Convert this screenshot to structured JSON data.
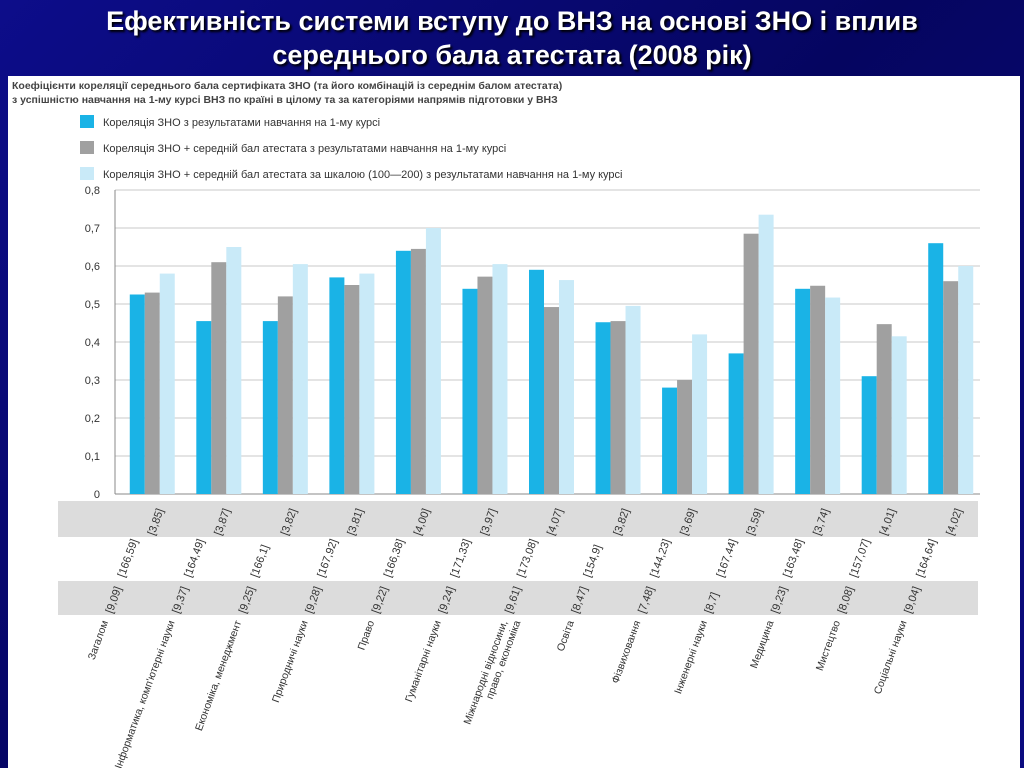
{
  "slide": {
    "title_line1": "Ефективність системи вступу до ВНЗ на основі ЗНО і вплив",
    "title_line2": "середнього бала атестата (2008 рік)"
  },
  "colors": {
    "background": "#0a0a78",
    "series_1": "#1ab3e6",
    "series_2": "#a0a0a0",
    "series_3": "#c9eaf8",
    "grid": "#c8c8c8",
    "table_band": "#dcdcdc"
  },
  "chart_data": {
    "type": "bar",
    "title": "Коефіцієнти кореляції середнього бала сертифіката ЗНО (та його комбінацій із середнім балом атестата) з успішністю навчання на 1-му курсі ВНЗ по країні в цілому та за категоріями напрямів підготовки у ВНЗ",
    "title_line1": "Коефіцієнти кореляції середнього бала сертифіката ЗНО (та його комбінацій із середнім балом атестата)",
    "title_line2": "з успішністю навчання на 1-му курсі ВНЗ по країні в цілому та за категоріями напрямів підготовки у ВНЗ",
    "legend_position": "top-left",
    "grid": true,
    "ylim": [
      0,
      0.8
    ],
    "y_ticks": [
      "0",
      "0,1",
      "0,2",
      "0,3",
      "0,4",
      "0,5",
      "0,6",
      "0,7",
      "0,8"
    ],
    "categories": [
      "Загалом",
      "Інформатика, комп'ютерні науки",
      "Економіка, менеджмент",
      "Природничі науки",
      "Право",
      "Гуманітарні науки",
      "Міжнародні відносини, право, економіка",
      "Освіта",
      "Фізвиховання",
      "Інженерні науки",
      "Медицина",
      "Мистецтво",
      "Соціальні науки"
    ],
    "category_label_lines": [
      [
        "Загалом"
      ],
      [
        "Інформатика, комп'ютерні науки"
      ],
      [
        "Економіка, менеджмент"
      ],
      [
        "Природничі науки"
      ],
      [
        "Право"
      ],
      [
        "Гуманітарні науки"
      ],
      [
        "Міжнародні відносини,",
        "право, економіка"
      ],
      [
        "Освіта"
      ],
      [
        "Фізвиховання"
      ],
      [
        "Інженерні науки"
      ],
      [
        "Медицина"
      ],
      [
        "Мистецтво"
      ],
      [
        "Соціальні науки"
      ]
    ],
    "series": [
      {
        "name": "Кореляція ЗНО з результатами навчання на 1-му курсі",
        "values": [
          0.525,
          0.455,
          0.455,
          0.57,
          0.64,
          0.54,
          0.59,
          0.452,
          0.28,
          0.37,
          0.54,
          0.31,
          0.66
        ]
      },
      {
        "name": "Кореляція ЗНО + середній бал атестата з результатами навчання на 1-му курсі",
        "values": [
          0.53,
          0.61,
          0.52,
          0.55,
          0.645,
          0.572,
          0.492,
          0.455,
          0.3,
          0.685,
          0.548,
          0.447,
          0.56
        ]
      },
      {
        "name": "Кореляція ЗНО + середній бал атестата за шкалою (100—200) з результатами навчання на 1-му курсі",
        "values": [
          0.58,
          0.65,
          0.605,
          0.58,
          0.7,
          0.605,
          0.563,
          0.495,
          0.42,
          0.735,
          0.517,
          0.415,
          0.6
        ]
      }
    ],
    "table_row1": [
      "[3,85]",
      "[3,87]",
      "[3,82]",
      "[3,81]",
      "[4,00]",
      "[3,97]",
      "[4,07]",
      "[3,82]",
      "[3,69]",
      "[3,59]",
      "[3,74]",
      "[4,01]",
      "[4,02]"
    ],
    "table_row2": [
      "[166,59]",
      "[164,49]",
      "[166,1]",
      "[167,92]",
      "[166,38]",
      "[171,33]",
      "[173,08]",
      "[154,9]",
      "[144,23]",
      "[167,44]",
      "[163,48]",
      "[157,07]",
      "[164,64]"
    ],
    "table_row3": [
      "[9,09]",
      "[9,37]",
      "[9,25]",
      "[9,28]",
      "[9,22]",
      "[9,24]",
      "[9,61]",
      "[8,47]",
      "[7,48]",
      "[8,7]",
      "[9,23]",
      "[8,08]",
      "[9,04]"
    ]
  }
}
